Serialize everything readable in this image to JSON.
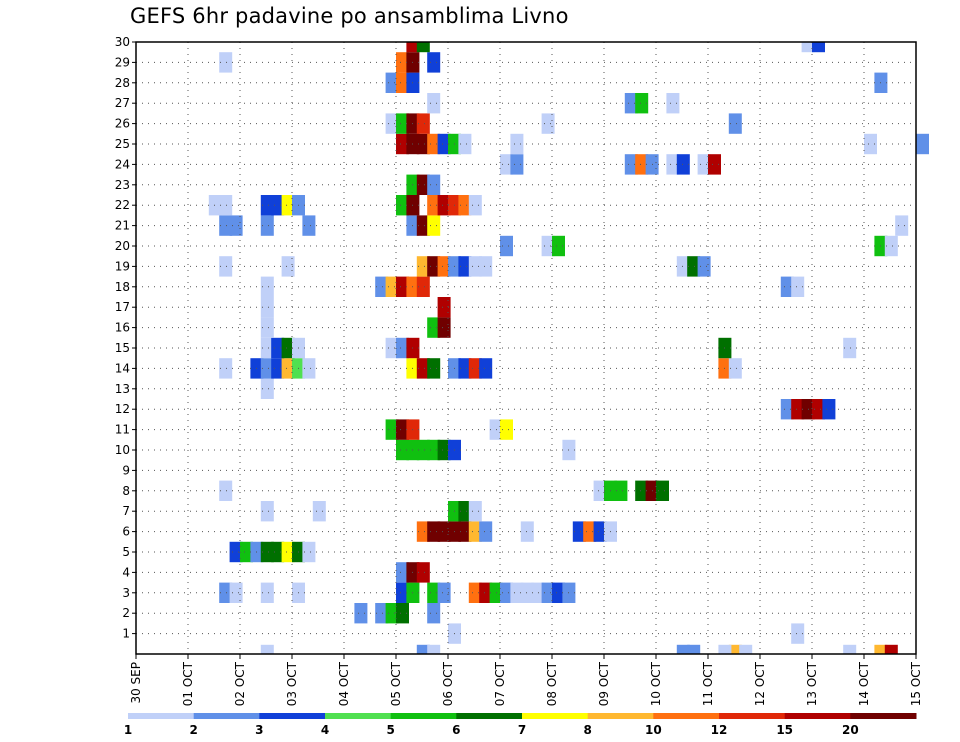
{
  "chart_data": {
    "type": "heatmap",
    "title": "GEFS 6hr padavine po ansamblima Livno",
    "x_ticks": [
      "30 SEP",
      "01 OCT",
      "02 OCT",
      "03 OCT",
      "04 OCT",
      "05 OCT",
      "06 OCT",
      "07 OCT",
      "08 OCT",
      "09 OCT",
      "10 OCT",
      "11 OCT",
      "12 OCT",
      "13 OCT",
      "14 OCT",
      "15 OCT"
    ],
    "y_ticks": [
      "1",
      "2",
      "3",
      "4",
      "5",
      "6",
      "7",
      "8",
      "9",
      "10",
      "11",
      "12",
      "13",
      "14",
      "15",
      "16",
      "17",
      "18",
      "19",
      "20",
      "21",
      "22",
      "23",
      "24",
      "25",
      "26",
      "27",
      "28",
      "29",
      "30"
    ],
    "xlim_days": [
      0,
      15
    ],
    "ylim_members": [
      0,
      30
    ],
    "step_hours": 6,
    "legend": {
      "labels": [
        "1",
        "2",
        "3",
        "4",
        "5",
        "6",
        "7",
        "8",
        "10",
        "12",
        "15",
        "20"
      ],
      "colors": [
        "#c0d0f8",
        "#6090e8",
        "#1040d8",
        "#50e050",
        "#10c010",
        "#007000",
        "#ffff00",
        "#ffb830",
        "#ff7010",
        "#e02808",
        "#b00000",
        "#700000"
      ]
    },
    "cells_format": "[day_index (column start at 6h steps), member_row, value_mm]",
    "cells": [
      [
        10.6,
        0,
        2
      ],
      [
        11.4,
        0,
        8
      ],
      [
        13.6,
        0,
        1
      ],
      [
        14.2,
        0,
        8
      ],
      [
        14.4,
        0,
        15
      ],
      [
        2.4,
        0,
        1
      ],
      [
        5.4,
        0,
        2
      ],
      [
        5.6,
        0,
        1
      ],
      [
        10.4,
        0,
        2
      ],
      [
        11.2,
        0,
        1
      ],
      [
        11.6,
        0,
        1
      ],
      [
        6.0,
        1,
        1
      ],
      [
        12.6,
        1,
        1
      ],
      [
        4.2,
        2,
        2
      ],
      [
        4.6,
        2,
        2
      ],
      [
        4.8,
        2,
        5
      ],
      [
        5.0,
        2,
        6
      ],
      [
        5.6,
        2,
        2
      ],
      [
        1.6,
        3,
        2
      ],
      [
        1.8,
        3,
        1
      ],
      [
        2.4,
        3,
        1
      ],
      [
        3.0,
        3,
        1
      ],
      [
        5.0,
        3,
        3
      ],
      [
        5.2,
        3,
        5
      ],
      [
        5.6,
        3,
        5
      ],
      [
        5.8,
        3,
        2
      ],
      [
        6.4,
        3,
        10
      ],
      [
        6.6,
        3,
        15
      ],
      [
        6.8,
        3,
        5
      ],
      [
        7.0,
        3,
        2
      ],
      [
        7.2,
        3,
        1
      ],
      [
        7.4,
        3,
        1
      ],
      [
        7.6,
        3,
        1
      ],
      [
        7.8,
        3,
        2
      ],
      [
        8.0,
        3,
        3
      ],
      [
        8.2,
        3,
        2
      ],
      [
        5.0,
        4,
        2
      ],
      [
        5.2,
        4,
        20
      ],
      [
        5.4,
        4,
        15
      ],
      [
        1.8,
        5,
        3
      ],
      [
        2.0,
        5,
        5
      ],
      [
        2.2,
        5,
        2
      ],
      [
        2.4,
        5,
        6
      ],
      [
        2.6,
        5,
        6
      ],
      [
        2.8,
        5,
        7
      ],
      [
        3.0,
        5,
        6
      ],
      [
        3.2,
        5,
        1
      ],
      [
        5.4,
        6,
        10
      ],
      [
        5.6,
        6,
        20
      ],
      [
        5.8,
        6,
        20
      ],
      [
        6.0,
        6,
        20
      ],
      [
        6.2,
        6,
        20
      ],
      [
        6.4,
        6,
        8
      ],
      [
        6.6,
        6,
        2
      ],
      [
        7.4,
        6,
        1
      ],
      [
        8.4,
        6,
        3
      ],
      [
        8.6,
        6,
        10
      ],
      [
        8.8,
        6,
        3
      ],
      [
        9.0,
        6,
        1
      ],
      [
        6.0,
        7,
        5
      ],
      [
        6.2,
        7,
        6
      ],
      [
        6.4,
        7,
        1
      ],
      [
        2.4,
        7,
        1
      ],
      [
        3.4,
        7,
        1
      ],
      [
        1.6,
        8,
        1
      ],
      [
        8.8,
        8,
        1
      ],
      [
        9.0,
        8,
        5
      ],
      [
        9.2,
        8,
        5
      ],
      [
        9.6,
        8,
        6
      ],
      [
        9.8,
        8,
        20
      ],
      [
        10.0,
        8,
        6
      ],
      [
        5.0,
        10,
        5
      ],
      [
        5.2,
        10,
        5
      ],
      [
        5.4,
        10,
        5
      ],
      [
        5.6,
        10,
        5
      ],
      [
        5.8,
        10,
        6
      ],
      [
        6.0,
        10,
        3
      ],
      [
        8.2,
        10,
        1
      ],
      [
        4.8,
        11,
        5
      ],
      [
        5.0,
        11,
        20
      ],
      [
        5.2,
        11,
        12
      ],
      [
        6.8,
        11,
        1
      ],
      [
        7.0,
        11,
        7
      ],
      [
        12.4,
        12,
        2
      ],
      [
        12.6,
        12,
        15
      ],
      [
        12.8,
        12,
        20
      ],
      [
        13.0,
        12,
        15
      ],
      [
        13.2,
        12,
        3
      ],
      [
        2.4,
        13,
        1
      ],
      [
        1.6,
        14,
        1
      ],
      [
        2.2,
        14,
        3
      ],
      [
        2.4,
        14,
        2
      ],
      [
        2.6,
        14,
        3
      ],
      [
        2.8,
        14,
        8
      ],
      [
        3.0,
        14,
        4
      ],
      [
        3.2,
        14,
        1
      ],
      [
        5.2,
        14,
        7
      ],
      [
        5.4,
        14,
        15
      ],
      [
        5.6,
        14,
        6
      ],
      [
        6.0,
        14,
        2
      ],
      [
        6.2,
        14,
        3
      ],
      [
        6.4,
        14,
        12
      ],
      [
        6.6,
        14,
        3
      ],
      [
        11.2,
        14,
        10
      ],
      [
        11.4,
        14,
        1
      ],
      [
        2.4,
        15,
        1
      ],
      [
        2.6,
        15,
        3
      ],
      [
        2.8,
        15,
        6
      ],
      [
        3.0,
        15,
        1
      ],
      [
        4.8,
        15,
        1
      ],
      [
        5.0,
        15,
        2
      ],
      [
        5.2,
        15,
        15
      ],
      [
        11.2,
        15,
        6
      ],
      [
        13.6,
        15,
        1
      ],
      [
        2.4,
        16,
        1
      ],
      [
        5.6,
        16,
        5
      ],
      [
        5.8,
        16,
        20
      ],
      [
        2.4,
        17,
        1
      ],
      [
        5.8,
        17,
        15
      ],
      [
        4.6,
        18,
        2
      ],
      [
        4.8,
        18,
        8
      ],
      [
        5.0,
        18,
        15
      ],
      [
        5.2,
        18,
        10
      ],
      [
        5.4,
        18,
        12
      ],
      [
        12.4,
        18,
        2
      ],
      [
        12.6,
        18,
        1
      ],
      [
        2.4,
        18,
        1
      ],
      [
        1.6,
        19,
        1
      ],
      [
        2.8,
        19,
        1
      ],
      [
        5.4,
        19,
        8
      ],
      [
        5.6,
        19,
        20
      ],
      [
        5.8,
        19,
        10
      ],
      [
        6.0,
        19,
        2
      ],
      [
        6.2,
        19,
        3
      ],
      [
        6.4,
        19,
        1
      ],
      [
        6.6,
        19,
        1
      ],
      [
        10.4,
        19,
        1
      ],
      [
        10.6,
        19,
        6
      ],
      [
        10.8,
        19,
        2
      ],
      [
        7.0,
        20,
        2
      ],
      [
        7.8,
        20,
        1
      ],
      [
        8.0,
        20,
        5
      ],
      [
        14.2,
        20,
        5
      ],
      [
        14.4,
        20,
        1
      ],
      [
        1.6,
        21,
        2
      ],
      [
        1.8,
        21,
        2
      ],
      [
        2.4,
        21,
        2
      ],
      [
        3.2,
        21,
        2
      ],
      [
        5.2,
        21,
        2
      ],
      [
        5.4,
        21,
        20
      ],
      [
        5.6,
        21,
        7
      ],
      [
        14.6,
        21,
        1
      ],
      [
        1.4,
        22,
        1
      ],
      [
        1.6,
        22,
        1
      ],
      [
        2.4,
        22,
        3
      ],
      [
        2.6,
        22,
        3
      ],
      [
        2.8,
        22,
        7
      ],
      [
        3.0,
        22,
        2
      ],
      [
        5.0,
        22,
        5
      ],
      [
        5.2,
        22,
        20
      ],
      [
        5.6,
        22,
        10
      ],
      [
        5.8,
        22,
        15
      ],
      [
        6.0,
        22,
        12
      ],
      [
        6.2,
        22,
        10
      ],
      [
        6.4,
        22,
        1
      ],
      [
        5.2,
        23,
        5
      ],
      [
        5.4,
        23,
        20
      ],
      [
        5.6,
        23,
        2
      ],
      [
        7.0,
        24,
        1
      ],
      [
        7.2,
        24,
        2
      ],
      [
        9.4,
        24,
        2
      ],
      [
        9.6,
        24,
        10
      ],
      [
        9.8,
        24,
        2
      ],
      [
        10.2,
        24,
        1
      ],
      [
        10.4,
        24,
        3
      ],
      [
        10.8,
        24,
        1
      ],
      [
        11.0,
        24,
        15
      ],
      [
        5.0,
        25,
        15
      ],
      [
        5.2,
        25,
        20
      ],
      [
        5.4,
        25,
        20
      ],
      [
        5.6,
        25,
        10
      ],
      [
        5.8,
        25,
        3
      ],
      [
        6.0,
        25,
        5
      ],
      [
        6.2,
        25,
        1
      ],
      [
        7.2,
        25,
        1
      ],
      [
        14.0,
        25,
        1
      ],
      [
        15.0,
        25,
        2
      ],
      [
        4.8,
        26,
        1
      ],
      [
        5.0,
        26,
        5
      ],
      [
        5.2,
        26,
        20
      ],
      [
        5.4,
        26,
        12
      ],
      [
        7.8,
        26,
        1
      ],
      [
        11.4,
        26,
        2
      ],
      [
        5.6,
        27,
        1
      ],
      [
        9.4,
        27,
        2
      ],
      [
        9.6,
        27,
        5
      ],
      [
        10.2,
        27,
        1
      ],
      [
        4.8,
        28,
        2
      ],
      [
        5.0,
        28,
        10
      ],
      [
        5.2,
        28,
        3
      ],
      [
        14.2,
        28,
        2
      ],
      [
        1.6,
        29,
        1
      ],
      [
        5.0,
        29,
        10
      ],
      [
        5.2,
        29,
        20
      ],
      [
        5.6,
        29,
        3
      ],
      [
        5.2,
        30,
        15
      ],
      [
        5.4,
        30,
        6
      ],
      [
        12.8,
        30,
        1
      ],
      [
        13.0,
        30,
        3
      ]
    ]
  }
}
